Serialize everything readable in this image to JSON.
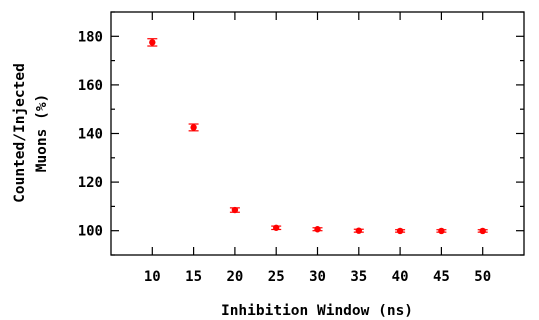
{
  "chart_data": {
    "type": "scatter",
    "xlabel": "Inhibition Window (ns)",
    "ylabel_lines": [
      "Counted/Injected",
      "Muons (%)"
    ],
    "x": [
      10,
      15,
      20,
      25,
      30,
      35,
      40,
      45,
      50
    ],
    "y": [
      177.5,
      142.5,
      108.5,
      101.2,
      100.6,
      100.0,
      99.9,
      99.9,
      99.9
    ],
    "yerr": [
      1.5,
      1.4,
      0.9,
      0.7,
      0.6,
      0.6,
      0.5,
      0.5,
      0.5
    ],
    "xlim": [
      5,
      55
    ],
    "ylim": [
      90,
      190
    ],
    "xticks": [
      10,
      15,
      20,
      25,
      30,
      35,
      40,
      45,
      50
    ],
    "yticks": [
      100,
      120,
      140,
      160,
      180
    ],
    "marker_color": "#ff0000",
    "grid": false,
    "legend": "none"
  }
}
